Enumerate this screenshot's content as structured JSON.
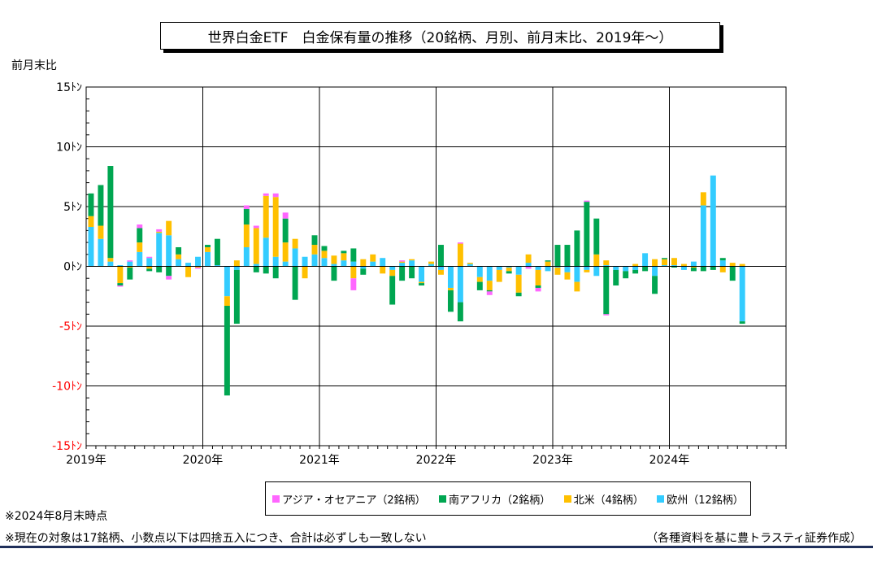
{
  "title": "世界白金ETF　白金保有量の推移（20銘柄、月別、前月末比、2019年～）",
  "note_date": "※2024年8月末時点",
  "note_detail": "※現在の対象は17銘柄、小数点以下は四捨五入につき、合計は必ずしも一致しない",
  "credit": "（各種資料を基に豊トラスティ証券作成）",
  "colors": {
    "asia": "#ff66ff",
    "south_africa": "#00a651",
    "north_america": "#ffc000",
    "europe": "#33ccff",
    "negative_tick": "#ff0000"
  },
  "chart_data": {
    "type": "bar",
    "stacked": true,
    "ylabel": "前月末比",
    "ylim": [
      -15,
      15
    ],
    "yticks": [
      {
        "value": 15,
        "label": "15ﾄﾝ"
      },
      {
        "value": 10,
        "label": "10ﾄﾝ"
      },
      {
        "value": 5,
        "label": "5ﾄﾝ"
      },
      {
        "value": 0,
        "label": "0ﾄﾝ"
      },
      {
        "value": -5,
        "label": "-5ﾄﾝ"
      },
      {
        "value": -10,
        "label": "-10ﾄﾝ"
      },
      {
        "value": -15,
        "label": "-15ﾄﾝ"
      }
    ],
    "x_labels": [
      "2019年",
      "2020年",
      "2021年",
      "2022年",
      "2023年",
      "2024年"
    ],
    "months": [
      "2019-01",
      "2019-02",
      "2019-03",
      "2019-04",
      "2019-05",
      "2019-06",
      "2019-07",
      "2019-08",
      "2019-09",
      "2019-10",
      "2019-11",
      "2019-12",
      "2020-01",
      "2020-02",
      "2020-03",
      "2020-04",
      "2020-05",
      "2020-06",
      "2020-07",
      "2020-08",
      "2020-09",
      "2020-10",
      "2020-11",
      "2020-12",
      "2021-01",
      "2021-02",
      "2021-03",
      "2021-04",
      "2021-05",
      "2021-06",
      "2021-07",
      "2021-08",
      "2021-09",
      "2021-10",
      "2021-11",
      "2021-12",
      "2022-01",
      "2022-02",
      "2022-03",
      "2022-04",
      "2022-05",
      "2022-06",
      "2022-07",
      "2022-08",
      "2022-09",
      "2022-10",
      "2022-11",
      "2022-12",
      "2023-01",
      "2023-02",
      "2023-03",
      "2023-04",
      "2023-05",
      "2023-06",
      "2023-07",
      "2023-08",
      "2023-09",
      "2023-10",
      "2023-11",
      "2023-12",
      "2024-01",
      "2024-02",
      "2024-03",
      "2024-04",
      "2024-05",
      "2024-06",
      "2024-07",
      "2024-08"
    ],
    "legend": [
      {
        "key": "asia",
        "label": "アジア・オセアニア（2銘柄）"
      },
      {
        "key": "south_africa",
        "label": "南アフリカ（2銘柄）"
      },
      {
        "key": "north_america",
        "label": "北米（4銘柄）"
      },
      {
        "key": "europe",
        "label": "欧州（12銘柄）"
      }
    ],
    "series": [
      {
        "name": "欧州（12銘柄）",
        "key": "europe",
        "values": [
          3.3,
          2.3,
          0.4,
          0.1,
          0.4,
          1.2,
          0.7,
          2.8,
          2.6,
          0.6,
          0.3,
          0.8,
          1.2,
          0.1,
          -2.5,
          -0.3,
          1.6,
          0.2,
          2.4,
          0.8,
          0.4,
          1.5,
          0.8,
          1.0,
          0.7,
          0.2,
          0.5,
          0.4,
          -0.2,
          0.4,
          0.7,
          -0.3,
          0.3,
          0.5,
          -1.3,
          0.2,
          -0.3,
          -1.8,
          -3.0,
          0.2,
          -0.9,
          -1.2,
          -0.3,
          -0.1,
          -0.7,
          0.3,
          -0.3,
          -0.4,
          -0.1,
          -0.5,
          -1.3,
          -0.3,
          -0.8,
          0.1,
          -0.3,
          -0.4,
          -0.3,
          1.1,
          -0.8,
          0.1,
          0.1,
          -0.3,
          0.4,
          5.1,
          7.6,
          0.5,
          0.0,
          -4.6
        ]
      },
      {
        "name": "北米（4銘柄）",
        "key": "north_america",
        "values": [
          0.9,
          1.1,
          0.3,
          -1.4,
          -0.1,
          0.8,
          -0.2,
          0.1,
          1.2,
          0.4,
          -0.9,
          -0.1,
          0.4,
          0.0,
          -0.8,
          0.5,
          1.9,
          3.0,
          3.5,
          5.0,
          1.6,
          0.8,
          -1.0,
          0.8,
          0.6,
          0.7,
          0.6,
          -1.0,
          0.6,
          0.6,
          -0.6,
          -0.5,
          0.1,
          0.1,
          -0.1,
          0.2,
          -0.4,
          -0.2,
          1.9,
          0.1,
          -0.4,
          -0.8,
          -1.0,
          -0.3,
          -1.5,
          0.7,
          -1.3,
          0.4,
          -0.6,
          -0.6,
          -0.8,
          -0.2,
          1.0,
          0.4,
          0.0,
          0.0,
          0.2,
          0.0,
          0.6,
          0.5,
          0.6,
          0.2,
          -0.1,
          1.1,
          0.0,
          -0.5,
          0.3,
          0.2
        ]
      },
      {
        "name": "南アフリカ（2銘柄）",
        "key": "south_africa",
        "values": [
          1.9,
          3.4,
          7.7,
          -0.2,
          -1.0,
          1.2,
          -0.2,
          -0.5,
          -0.8,
          0.6,
          0.0,
          0.0,
          0.2,
          2.2,
          -7.5,
          -4.5,
          1.3,
          -0.5,
          -0.6,
          -1.0,
          2.0,
          -2.8,
          0.0,
          0.8,
          0.4,
          -1.2,
          0.2,
          1.1,
          -0.5,
          0.0,
          0.0,
          -2.4,
          -1.2,
          -1.0,
          -0.2,
          0.0,
          1.8,
          -1.8,
          -1.6,
          0.0,
          -0.7,
          -0.1,
          0.0,
          -0.2,
          -0.3,
          0.0,
          -0.2,
          0.1,
          1.8,
          1.8,
          3.0,
          5.4,
          3.0,
          -4.0,
          -1.3,
          -0.6,
          -0.3,
          -0.4,
          -1.5,
          0.1,
          -0.1,
          0.0,
          -0.3,
          -0.4,
          -0.3,
          0.2,
          -1.2,
          -0.2
        ]
      },
      {
        "name": "アジア・オセアニア（2銘柄）",
        "key": "asia",
        "values": [
          0.0,
          0.0,
          0.0,
          -0.1,
          0.1,
          0.3,
          0.1,
          0.2,
          -0.3,
          0.0,
          0.0,
          -0.1,
          0.0,
          0.0,
          0.0,
          0.0,
          0.3,
          0.2,
          0.2,
          0.3,
          0.5,
          0.0,
          0.0,
          0.0,
          0.0,
          0.0,
          0.0,
          -1.0,
          0.0,
          0.0,
          0.0,
          0.0,
          0.1,
          0.0,
          0.0,
          0.0,
          0.0,
          0.0,
          0.1,
          0.0,
          0.0,
          -0.3,
          0.0,
          0.0,
          0.0,
          -0.2,
          -0.3,
          0.0,
          0.0,
          0.0,
          0.0,
          0.1,
          0.0,
          -0.1,
          0.0,
          0.0,
          0.0,
          0.0,
          0.0,
          0.0,
          0.0,
          0.0,
          0.0,
          0.0,
          0.0,
          0.0,
          0.0,
          0.0
        ]
      }
    ]
  }
}
